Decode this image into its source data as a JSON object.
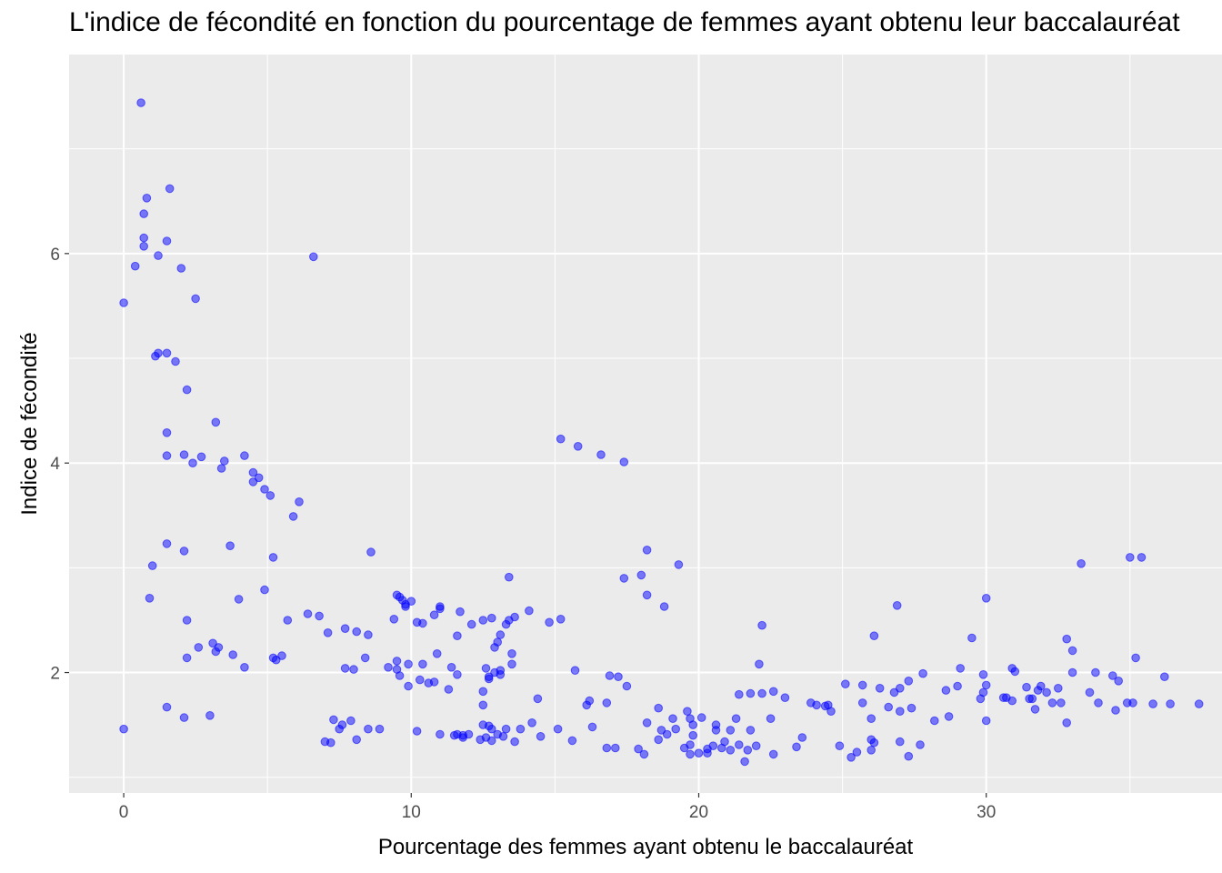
{
  "chart_data": {
    "type": "scatter",
    "title": "L'indice de fécondité en fonction du pourcentage de femmes ayant obtenu leur baccalauréat",
    "xlabel": "Pourcentage des femmes ayant obtenu le baccalauréat",
    "ylabel": "Indice de fécondité",
    "xlim": [
      -1.9,
      38.2
    ],
    "ylim": [
      0.85,
      7.9
    ],
    "x_ticks": [
      0,
      10,
      20,
      30
    ],
    "y_ticks": [
      2,
      4,
      6
    ],
    "grid": true,
    "legend": "none",
    "point_color": "#0000FF",
    "panel_color": "#EBEBEB",
    "points": [
      [
        0.0,
        5.53
      ],
      [
        0.0,
        1.46
      ],
      [
        0.4,
        5.88
      ],
      [
        0.6,
        7.44
      ],
      [
        0.7,
        6.38
      ],
      [
        0.7,
        6.15
      ],
      [
        0.7,
        6.07
      ],
      [
        0.8,
        6.53
      ],
      [
        0.9,
        2.71
      ],
      [
        1.0,
        3.02
      ],
      [
        1.1,
        5.02
      ],
      [
        1.2,
        5.05
      ],
      [
        1.2,
        5.98
      ],
      [
        1.5,
        5.05
      ],
      [
        1.5,
        4.29
      ],
      [
        1.5,
        4.07
      ],
      [
        1.5,
        3.23
      ],
      [
        1.5,
        1.67
      ],
      [
        1.5,
        6.12
      ],
      [
        1.6,
        6.62
      ],
      [
        1.8,
        4.97
      ],
      [
        2.0,
        5.86
      ],
      [
        2.1,
        1.57
      ],
      [
        2.1,
        4.08
      ],
      [
        2.1,
        3.16
      ],
      [
        2.2,
        4.7
      ],
      [
        2.2,
        2.5
      ],
      [
        2.2,
        2.14
      ],
      [
        2.4,
        4.0
      ],
      [
        2.5,
        5.57
      ],
      [
        2.6,
        2.24
      ],
      [
        2.7,
        4.06
      ],
      [
        3.0,
        1.59
      ],
      [
        3.1,
        2.28
      ],
      [
        3.2,
        4.39
      ],
      [
        3.2,
        2.2
      ],
      [
        3.3,
        2.24
      ],
      [
        3.4,
        3.95
      ],
      [
        3.5,
        4.02
      ],
      [
        3.7,
        3.21
      ],
      [
        3.8,
        2.17
      ],
      [
        4.0,
        2.7
      ],
      [
        4.2,
        4.07
      ],
      [
        4.2,
        2.05
      ],
      [
        4.5,
        3.91
      ],
      [
        4.5,
        3.82
      ],
      [
        4.7,
        3.86
      ],
      [
        4.9,
        3.75
      ],
      [
        4.9,
        2.79
      ],
      [
        5.1,
        3.69
      ],
      [
        5.2,
        3.1
      ],
      [
        5.2,
        2.14
      ],
      [
        5.3,
        2.12
      ],
      [
        5.5,
        2.16
      ],
      [
        5.7,
        2.5
      ],
      [
        5.9,
        3.49
      ],
      [
        6.1,
        3.63
      ],
      [
        6.4,
        2.56
      ],
      [
        6.6,
        5.97
      ],
      [
        6.8,
        2.54
      ],
      [
        7.0,
        1.34
      ],
      [
        7.1,
        2.38
      ],
      [
        7.2,
        1.33
      ],
      [
        7.3,
        1.55
      ],
      [
        7.5,
        1.46
      ],
      [
        7.6,
        1.5
      ],
      [
        7.7,
        2.04
      ],
      [
        7.7,
        2.42
      ],
      [
        7.9,
        1.54
      ],
      [
        8.0,
        2.03
      ],
      [
        8.1,
        2.39
      ],
      [
        8.1,
        1.36
      ],
      [
        8.4,
        2.14
      ],
      [
        8.5,
        2.36
      ],
      [
        8.5,
        1.46
      ],
      [
        8.6,
        3.15
      ],
      [
        8.9,
        1.46
      ],
      [
        9.2,
        2.05
      ],
      [
        9.4,
        2.51
      ],
      [
        9.5,
        2.11
      ],
      [
        9.5,
        2.74
      ],
      [
        9.5,
        2.03
      ],
      [
        9.6,
        2.72
      ],
      [
        9.6,
        1.97
      ],
      [
        9.7,
        2.69
      ],
      [
        9.8,
        2.65
      ],
      [
        9.8,
        2.63
      ],
      [
        9.9,
        2.08
      ],
      [
        9.9,
        1.87
      ],
      [
        10.0,
        2.68
      ],
      [
        10.2,
        2.48
      ],
      [
        10.2,
        1.44
      ],
      [
        10.3,
        1.93
      ],
      [
        10.4,
        2.47
      ],
      [
        10.4,
        2.08
      ],
      [
        10.6,
        1.9
      ],
      [
        10.8,
        1.91
      ],
      [
        10.8,
        2.55
      ],
      [
        10.9,
        2.18
      ],
      [
        11.0,
        1.41
      ],
      [
        11.0,
        2.61
      ],
      [
        11.0,
        2.63
      ],
      [
        11.3,
        1.84
      ],
      [
        11.4,
        2.05
      ],
      [
        11.5,
        1.4
      ],
      [
        11.6,
        1.98
      ],
      [
        11.6,
        1.41
      ],
      [
        11.6,
        2.35
      ],
      [
        11.7,
        2.58
      ],
      [
        11.8,
        1.38
      ],
      [
        11.8,
        1.4
      ],
      [
        12.0,
        1.41
      ],
      [
        12.1,
        2.46
      ],
      [
        12.4,
        1.36
      ],
      [
        12.5,
        1.5
      ],
      [
        12.5,
        1.69
      ],
      [
        12.5,
        1.82
      ],
      [
        12.5,
        2.5
      ],
      [
        12.6,
        1.38
      ],
      [
        12.6,
        2.04
      ],
      [
        12.7,
        1.49
      ],
      [
        12.7,
        1.96
      ],
      [
        12.7,
        1.94
      ],
      [
        12.8,
        1.46
      ],
      [
        12.8,
        2.52
      ],
      [
        12.8,
        1.35
      ],
      [
        12.9,
        2.0
      ],
      [
        12.9,
        2.24
      ],
      [
        13.0,
        2.29
      ],
      [
        13.0,
        1.41
      ],
      [
        13.1,
        2.02
      ],
      [
        13.1,
        2.36
      ],
      [
        13.1,
        1.98
      ],
      [
        13.2,
        1.39
      ],
      [
        13.3,
        2.46
      ],
      [
        13.3,
        1.46
      ],
      [
        13.4,
        2.5
      ],
      [
        13.4,
        2.91
      ],
      [
        13.5,
        2.08
      ],
      [
        13.5,
        2.18
      ],
      [
        13.6,
        1.34
      ],
      [
        13.6,
        2.53
      ],
      [
        13.8,
        1.46
      ],
      [
        14.1,
        2.59
      ],
      [
        14.2,
        1.52
      ],
      [
        14.4,
        1.75
      ],
      [
        14.5,
        1.39
      ],
      [
        14.8,
        2.48
      ],
      [
        15.1,
        1.46
      ],
      [
        15.2,
        4.23
      ],
      [
        15.2,
        2.51
      ],
      [
        15.6,
        1.35
      ],
      [
        15.7,
        2.02
      ],
      [
        15.8,
        4.16
      ],
      [
        16.1,
        1.69
      ],
      [
        16.2,
        1.73
      ],
      [
        16.3,
        1.48
      ],
      [
        16.6,
        4.08
      ],
      [
        16.8,
        1.71
      ],
      [
        16.8,
        1.28
      ],
      [
        16.9,
        1.97
      ],
      [
        17.1,
        1.28
      ],
      [
        17.2,
        1.96
      ],
      [
        17.4,
        4.01
      ],
      [
        17.4,
        2.9
      ],
      [
        17.5,
        1.87
      ],
      [
        17.9,
        1.27
      ],
      [
        18.0,
        2.93
      ],
      [
        18.1,
        1.22
      ],
      [
        18.2,
        1.52
      ],
      [
        18.2,
        3.17
      ],
      [
        18.2,
        2.74
      ],
      [
        18.6,
        1.36
      ],
      [
        18.6,
        1.66
      ],
      [
        18.7,
        1.45
      ],
      [
        18.8,
        2.63
      ],
      [
        18.9,
        1.41
      ],
      [
        19.1,
        1.56
      ],
      [
        19.2,
        1.46
      ],
      [
        19.3,
        3.03
      ],
      [
        19.5,
        1.28
      ],
      [
        19.6,
        1.63
      ],
      [
        19.7,
        1.31
      ],
      [
        19.7,
        1.56
      ],
      [
        19.7,
        1.22
      ],
      [
        19.8,
        1.4
      ],
      [
        19.8,
        1.5
      ],
      [
        20.0,
        1.23
      ],
      [
        20.1,
        1.57
      ],
      [
        20.3,
        1.27
      ],
      [
        20.3,
        1.23
      ],
      [
        20.5,
        1.3
      ],
      [
        20.6,
        1.45
      ],
      [
        20.6,
        1.5
      ],
      [
        20.8,
        1.28
      ],
      [
        20.9,
        1.34
      ],
      [
        21.1,
        1.45
      ],
      [
        21.1,
        1.26
      ],
      [
        21.3,
        1.56
      ],
      [
        21.4,
        1.31
      ],
      [
        21.4,
        1.79
      ],
      [
        21.6,
        1.15
      ],
      [
        21.7,
        1.26
      ],
      [
        21.8,
        1.45
      ],
      [
        21.8,
        1.8
      ],
      [
        22.0,
        1.3
      ],
      [
        22.1,
        2.08
      ],
      [
        22.2,
        2.45
      ],
      [
        22.2,
        1.8
      ],
      [
        22.5,
        1.56
      ],
      [
        22.6,
        1.82
      ],
      [
        22.6,
        1.22
      ],
      [
        23.0,
        1.76
      ],
      [
        23.4,
        1.29
      ],
      [
        23.6,
        1.38
      ],
      [
        23.9,
        1.71
      ],
      [
        24.1,
        1.69
      ],
      [
        24.4,
        1.68
      ],
      [
        24.5,
        1.69
      ],
      [
        24.6,
        1.63
      ],
      [
        24.9,
        1.3
      ],
      [
        25.1,
        1.89
      ],
      [
        25.3,
        1.19
      ],
      [
        25.5,
        1.24
      ],
      [
        25.7,
        1.88
      ],
      [
        25.7,
        1.71
      ],
      [
        26.0,
        1.56
      ],
      [
        26.0,
        1.36
      ],
      [
        26.0,
        1.26
      ],
      [
        26.1,
        2.35
      ],
      [
        26.1,
        1.33
      ],
      [
        26.3,
        1.85
      ],
      [
        26.6,
        1.67
      ],
      [
        26.8,
        1.81
      ],
      [
        26.9,
        2.64
      ],
      [
        27.0,
        1.85
      ],
      [
        27.0,
        1.34
      ],
      [
        27.0,
        1.63
      ],
      [
        27.3,
        1.92
      ],
      [
        27.3,
        1.2
      ],
      [
        27.4,
        1.66
      ],
      [
        27.7,
        1.31
      ],
      [
        27.8,
        1.99
      ],
      [
        28.2,
        1.54
      ],
      [
        28.6,
        1.83
      ],
      [
        28.7,
        1.58
      ],
      [
        29.0,
        1.87
      ],
      [
        29.1,
        2.04
      ],
      [
        29.5,
        2.33
      ],
      [
        29.8,
        1.75
      ],
      [
        29.9,
        1.98
      ],
      [
        29.9,
        1.81
      ],
      [
        30.0,
        2.71
      ],
      [
        30.0,
        1.88
      ],
      [
        30.0,
        1.54
      ],
      [
        30.6,
        1.76
      ],
      [
        30.7,
        1.76
      ],
      [
        30.9,
        1.73
      ],
      [
        30.9,
        2.04
      ],
      [
        31.0,
        2.01
      ],
      [
        31.4,
        1.86
      ],
      [
        31.5,
        1.75
      ],
      [
        31.6,
        1.75
      ],
      [
        31.7,
        1.65
      ],
      [
        31.8,
        1.83
      ],
      [
        31.9,
        1.87
      ],
      [
        32.1,
        1.81
      ],
      [
        32.3,
        1.71
      ],
      [
        32.5,
        1.85
      ],
      [
        32.6,
        1.71
      ],
      [
        32.8,
        2.32
      ],
      [
        32.8,
        1.52
      ],
      [
        33.0,
        2.0
      ],
      [
        33.0,
        2.21
      ],
      [
        33.3,
        3.04
      ],
      [
        33.6,
        1.81
      ],
      [
        33.8,
        2.0
      ],
      [
        33.9,
        1.71
      ],
      [
        34.4,
        1.97
      ],
      [
        34.5,
        1.64
      ],
      [
        34.6,
        1.92
      ],
      [
        34.9,
        1.71
      ],
      [
        35.0,
        3.1
      ],
      [
        35.1,
        1.71
      ],
      [
        35.2,
        2.14
      ],
      [
        35.4,
        3.1
      ],
      [
        35.8,
        1.7
      ],
      [
        36.2,
        1.96
      ],
      [
        36.4,
        1.7
      ],
      [
        37.4,
        1.7
      ]
    ]
  }
}
